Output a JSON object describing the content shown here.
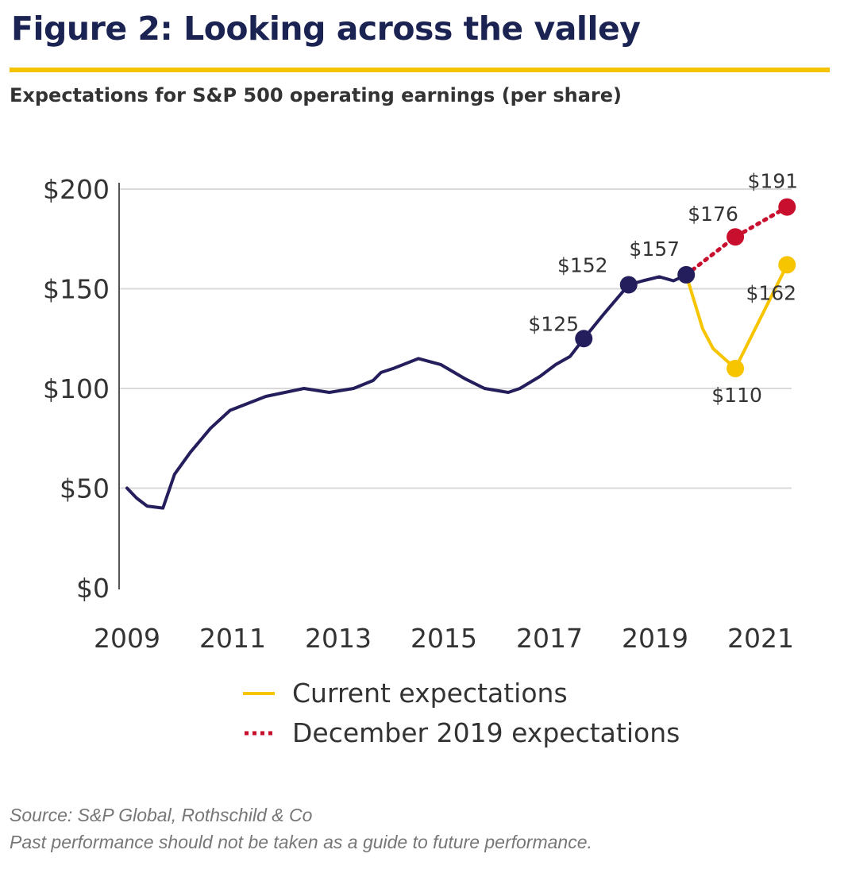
{
  "header": {
    "title": "Figure 2: Looking across the valley",
    "subtitle": "Expectations for S&P 500 operating earnings (per share)",
    "rule_color": "#f5c200"
  },
  "chart_data": {
    "type": "line",
    "title": "Figure 2: Looking across the valley",
    "subtitle": "Expectations for S&P 500 operating earnings (per share)",
    "xlabel": "",
    "ylabel": "",
    "xlim": [
      2009,
      2022.3
    ],
    "ylim": [
      0,
      200
    ],
    "x_ticks": [
      2009,
      2011,
      2013,
      2015,
      2017,
      2019,
      2021
    ],
    "y_ticks": [
      0,
      50,
      100,
      150,
      200
    ],
    "y_tick_labels": [
      "$0",
      "$50",
      "$100",
      "$150",
      "$200"
    ],
    "grid": "horizontal",
    "legend_position": "bottom",
    "series": [
      {
        "color": "#241f5c",
        "style": "solid",
        "points": [
          [
            2009.0,
            50
          ],
          [
            2009.18,
            45
          ],
          [
            2009.38,
            41
          ],
          [
            2009.68,
            40
          ],
          [
            2009.9,
            57
          ],
          [
            2010.2,
            68
          ],
          [
            2010.58,
            80
          ],
          [
            2010.95,
            89
          ],
          [
            2011.63,
            96
          ],
          [
            2012.35,
            100
          ],
          [
            2012.83,
            98
          ],
          [
            2013.29,
            100
          ],
          [
            2013.66,
            104
          ],
          [
            2013.81,
            108
          ],
          [
            2014.04,
            110
          ],
          [
            2014.52,
            115
          ],
          [
            2014.94,
            112
          ],
          [
            2015.39,
            105
          ],
          [
            2015.77,
            100
          ],
          [
            2016.22,
            98
          ],
          [
            2016.44,
            100
          ],
          [
            2016.82,
            106
          ],
          [
            2017.12,
            112
          ],
          [
            2017.39,
            116
          ],
          [
            2017.65,
            125
          ],
          [
            2018.02,
            137
          ],
          [
            2018.5,
            152
          ],
          [
            2018.77,
            154
          ],
          [
            2019.08,
            156
          ],
          [
            2019.35,
            154
          ],
          [
            2019.59,
            157
          ]
        ],
        "markers": [
          {
            "x": 2017.65,
            "y": 125,
            "label": "$125"
          },
          {
            "x": 2018.5,
            "y": 152,
            "label": "$152"
          },
          {
            "x": 2019.59,
            "y": 157,
            "label": "$157"
          }
        ]
      },
      {
        "name": "Current expectations",
        "color": "#f7c400",
        "style": "solid",
        "points": [
          [
            2019.59,
            157
          ],
          [
            2019.9,
            130
          ],
          [
            2020.1,
            120
          ],
          [
            2020.52,
            110
          ],
          [
            2021.5,
            162
          ]
        ],
        "markers": [
          {
            "x": 2020.52,
            "y": 110,
            "label": "$110"
          },
          {
            "x": 2021.5,
            "y": 162,
            "label": "$162"
          }
        ]
      },
      {
        "name": "December 2019 expectations",
        "color": "#c8102e",
        "style": "dotted",
        "points": [
          [
            2019.59,
            157
          ],
          [
            2020.52,
            176
          ],
          [
            2021.5,
            191
          ]
        ],
        "markers": [
          {
            "x": 2020.52,
            "y": 176,
            "label": "$176"
          },
          {
            "x": 2021.5,
            "y": 191,
            "label": "$191"
          }
        ]
      }
    ]
  },
  "legend": [
    {
      "label": "Current expectations",
      "color": "#f7c400"
    },
    {
      "label": "December 2019 expectations",
      "color": "#c8102e"
    }
  ],
  "footer": {
    "source": "Source: S&P Global, Rothschild & Co",
    "disclaimer": "Past performance should not be taken as a guide to future performance."
  }
}
